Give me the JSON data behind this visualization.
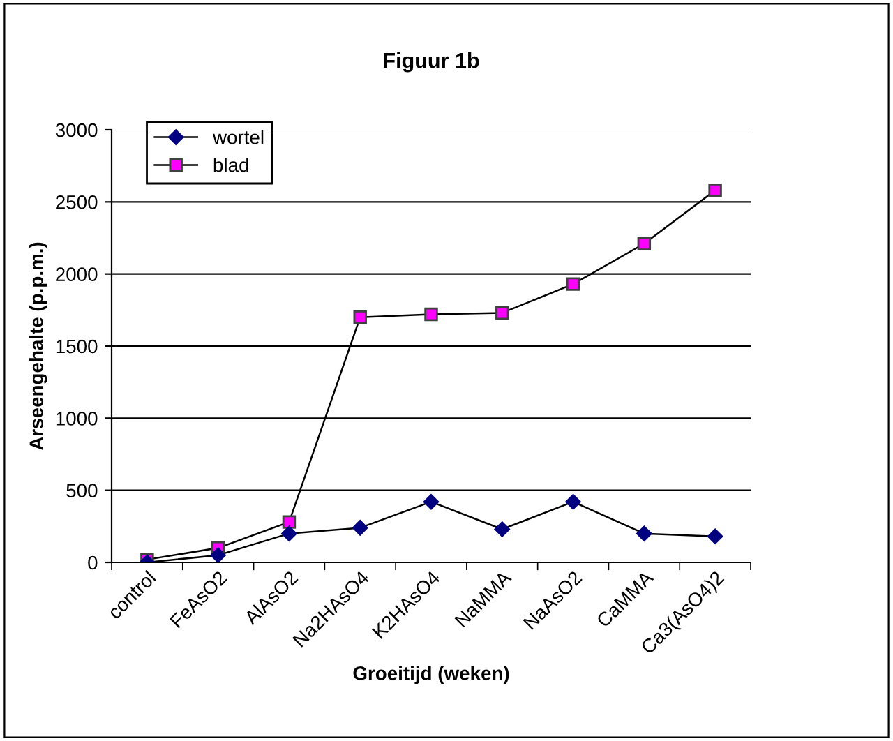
{
  "chart_data": {
    "type": "line",
    "title": "Figuur 1b",
    "xlabel": "Groeitijd (weken)",
    "ylabel": "Arseengehalte (p.p.m.)",
    "categories": [
      "control",
      "FeAsO2",
      "AlAsO2",
      "Na2HAsO4",
      "K2HAsO4",
      "NaMMA",
      "NaAsO2",
      "CaMMA",
      "Ca3(AsO4)2"
    ],
    "series": [
      {
        "name": "wortel",
        "color": "#000080",
        "marker": "diamond",
        "values": [
          0,
          50,
          200,
          240,
          420,
          230,
          420,
          200,
          180
        ]
      },
      {
        "name": "blad",
        "color": "#ff00ff",
        "marker": "square",
        "values": [
          20,
          100,
          280,
          1700,
          1720,
          1730,
          1930,
          2210,
          2580
        ]
      }
    ],
    "ylim": [
      0,
      3000
    ],
    "yticks": [
      0,
      500,
      1000,
      1500,
      2000,
      2500,
      3000
    ],
    "grid": "y",
    "legend": "top left"
  }
}
